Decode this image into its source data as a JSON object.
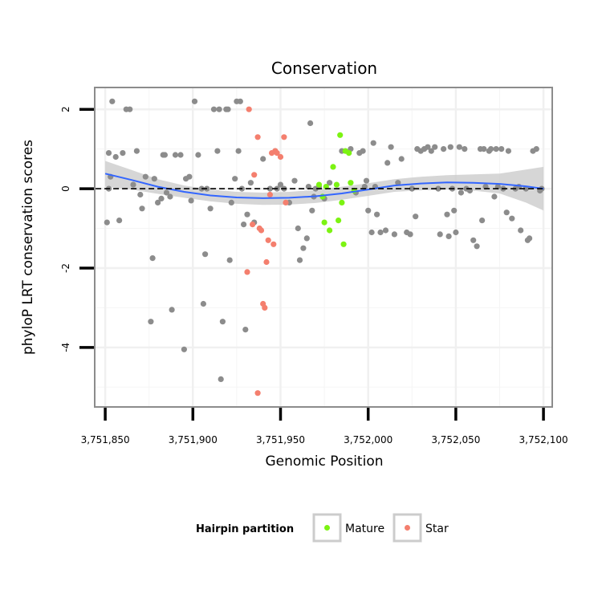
{
  "chart_data": {
    "type": "scatter",
    "title": "Conservation",
    "xlabel": "Genomic Position",
    "ylabel": "phyloP LRT conservation scores",
    "xlim": [
      3751844,
      3752105
    ],
    "ylim": [
      -5.5,
      2.55
    ],
    "x_ticks": [
      {
        "value": 3751850,
        "label": "3,751,850"
      },
      {
        "value": 3751900,
        "label": "3,751,900"
      },
      {
        "value": 3751950,
        "label": "3,751,950"
      },
      {
        "value": 3752000,
        "label": "3,752,000"
      },
      {
        "value": 3752050,
        "label": "3,752,050"
      },
      {
        "value": 3752100,
        "label": "3,752,100"
      }
    ],
    "y_ticks": [
      {
        "value": 2,
        "label": "2"
      },
      {
        "value": 0,
        "label": "0"
      },
      {
        "value": -2,
        "label": "-2"
      },
      {
        "value": -4,
        "label": "-4"
      }
    ],
    "reference_line": {
      "y": 0,
      "style": "dashed"
    },
    "colors": {
      "other": "#8c8c8c",
      "mature": "#7cf312",
      "star": "#f47f6e",
      "smooth": "#3366ff",
      "band": "#cccccc",
      "panel_border": "#8c8c8c"
    },
    "legend": {
      "title": "Hairpin partition",
      "entries": [
        {
          "label": "Mature",
          "color": "#7cf312"
        },
        {
          "label": "Star",
          "color": "#f47f6e"
        }
      ]
    },
    "smooth_line": {
      "x": [
        3751850,
        3751865,
        3751880,
        3751895,
        3751910,
        3751925,
        3751940,
        3751955,
        3751970,
        3751985,
        3752000,
        3752015,
        3752030,
        3752045,
        3752060,
        3752075,
        3752090,
        3752100
      ],
      "y": [
        0.38,
        0.22,
        0.05,
        -0.08,
        -0.17,
        -0.22,
        -0.24,
        -0.23,
        -0.19,
        -0.12,
        -0.02,
        0.08,
        0.13,
        0.16,
        0.15,
        0.12,
        0.06,
        0.0
      ],
      "lower": [
        0.05,
        -0.02,
        -0.13,
        -0.23,
        -0.32,
        -0.38,
        -0.41,
        -0.4,
        -0.36,
        -0.28,
        -0.18,
        -0.08,
        -0.04,
        -0.02,
        -0.05,
        -0.12,
        -0.35,
        -0.55
      ],
      "upper": [
        0.7,
        0.47,
        0.24,
        0.08,
        -0.02,
        -0.08,
        -0.1,
        -0.08,
        -0.03,
        0.05,
        0.14,
        0.24,
        0.3,
        0.34,
        0.36,
        0.38,
        0.48,
        0.55
      ]
    },
    "series": [
      {
        "name": "Other",
        "points": [
          [
            3751852,
            0.9
          ],
          [
            3751853,
            0.3
          ],
          [
            3751854,
            2.2
          ],
          [
            3751856,
            0.8
          ],
          [
            3751858,
            -0.8
          ],
          [
            3751851,
            -0.85
          ],
          [
            3751852,
            0.0
          ],
          [
            3751860,
            0.9
          ],
          [
            3751862,
            2.0
          ],
          [
            3751864,
            2.0
          ],
          [
            3751866,
            0.1
          ],
          [
            3751868,
            0.95
          ],
          [
            3751870,
            -0.15
          ],
          [
            3751871,
            -0.5
          ],
          [
            3751873,
            0.3
          ],
          [
            3751876,
            -3.35
          ],
          [
            3751877,
            -1.75
          ],
          [
            3751878,
            0.25
          ],
          [
            3751880,
            -0.35
          ],
          [
            3751882,
            -0.25
          ],
          [
            3751883,
            0.85
          ],
          [
            3751884,
            0.85
          ],
          [
            3751885,
            -0.1
          ],
          [
            3751887,
            -0.2
          ],
          [
            3751888,
            -3.05
          ],
          [
            3751890,
            0.85
          ],
          [
            3751893,
            0.85
          ],
          [
            3751895,
            -4.05
          ],
          [
            3751896,
            0.25
          ],
          [
            3751898,
            0.3
          ],
          [
            3751899,
            -0.3
          ],
          [
            3751901,
            2.2
          ],
          [
            3751903,
            0.85
          ],
          [
            3751905,
            0.0
          ],
          [
            3751906,
            -2.9
          ],
          [
            3751907,
            -1.65
          ],
          [
            3751908,
            0.0
          ],
          [
            3751910,
            -0.5
          ],
          [
            3751912,
            2.0
          ],
          [
            3751914,
            0.95
          ],
          [
            3751915,
            2.0
          ],
          [
            3751916,
            -4.8
          ],
          [
            3751917,
            -3.35
          ],
          [
            3751919,
            2.0
          ],
          [
            3751920,
            2.0
          ],
          [
            3751921,
            -1.8
          ],
          [
            3751922,
            -0.35
          ],
          [
            3751924,
            0.25
          ],
          [
            3751925,
            2.2
          ],
          [
            3751926,
            0.95
          ],
          [
            3751927,
            2.2
          ],
          [
            3751928,
            0.0
          ],
          [
            3751929,
            -0.9
          ],
          [
            3751930,
            -3.55
          ],
          [
            3751931,
            -0.65
          ],
          [
            3751933,
            0.15
          ],
          [
            3751935,
            -0.85
          ],
          [
            3751940,
            0.75
          ],
          [
            3751944,
            0.0
          ],
          [
            3751947,
            0.95
          ],
          [
            3751948,
            0.0
          ],
          [
            3751950,
            0.1
          ],
          [
            3751952,
            0.0
          ],
          [
            3751955,
            -0.35
          ],
          [
            3751958,
            0.2
          ],
          [
            3751960,
            -1.0
          ],
          [
            3751961,
            -1.8
          ],
          [
            3751963,
            -1.5
          ],
          [
            3751965,
            -1.25
          ],
          [
            3751966,
            0.05
          ],
          [
            3751967,
            1.65
          ],
          [
            3751968,
            -0.55
          ],
          [
            3751969,
            -0.2
          ],
          [
            3751970,
            0.0
          ],
          [
            3751972,
            0.05
          ],
          [
            3751975,
            -0.25
          ],
          [
            3751978,
            0.15
          ],
          [
            3751985,
            0.95
          ],
          [
            3751990,
            1.0
          ],
          [
            3751993,
            -0.1
          ],
          [
            3751995,
            0.9
          ],
          [
            3751997,
            0.95
          ],
          [
            3751998,
            0.05
          ],
          [
            3751999,
            0.2
          ],
          [
            3752000,
            -0.55
          ],
          [
            3752002,
            -1.1
          ],
          [
            3752003,
            1.15
          ],
          [
            3752004,
            0.05
          ],
          [
            3752005,
            -0.65
          ],
          [
            3752007,
            -1.1
          ],
          [
            3752010,
            -1.05
          ],
          [
            3752011,
            0.65
          ],
          [
            3752013,
            1.05
          ],
          [
            3752015,
            -1.15
          ],
          [
            3752017,
            0.15
          ],
          [
            3752019,
            0.75
          ],
          [
            3752022,
            -1.1
          ],
          [
            3752024,
            -1.15
          ],
          [
            3752025,
            0.0
          ],
          [
            3752027,
            -0.7
          ],
          [
            3752028,
            1.0
          ],
          [
            3752030,
            0.95
          ],
          [
            3752032,
            1.0
          ],
          [
            3752034,
            1.05
          ],
          [
            3752036,
            0.95
          ],
          [
            3752038,
            1.05
          ],
          [
            3752040,
            0.0
          ],
          [
            3752041,
            -1.15
          ],
          [
            3752043,
            1.0
          ],
          [
            3752045,
            -0.65
          ],
          [
            3752046,
            -1.2
          ],
          [
            3752047,
            1.05
          ],
          [
            3752048,
            0.0
          ],
          [
            3752049,
            -0.55
          ],
          [
            3752050,
            -1.1
          ],
          [
            3752052,
            1.05
          ],
          [
            3752053,
            -0.1
          ],
          [
            3752055,
            1.0
          ],
          [
            3752056,
            0.0
          ],
          [
            3752058,
            -0.05
          ],
          [
            3752060,
            -1.3
          ],
          [
            3752062,
            -1.45
          ],
          [
            3752064,
            1.0
          ],
          [
            3752065,
            -0.8
          ],
          [
            3752066,
            1.0
          ],
          [
            3752067,
            0.05
          ],
          [
            3752069,
            0.95
          ],
          [
            3752070,
            1.0
          ],
          [
            3752072,
            -0.2
          ],
          [
            3752073,
            1.0
          ],
          [
            3752074,
            0.05
          ],
          [
            3752076,
            1.0
          ],
          [
            3752077,
            0.0
          ],
          [
            3752079,
            -0.6
          ],
          [
            3752080,
            0.95
          ],
          [
            3752082,
            -0.75
          ],
          [
            3752084,
            0.0
          ],
          [
            3752086,
            0.05
          ],
          [
            3752087,
            -1.05
          ],
          [
            3752090,
            0.0
          ],
          [
            3752091,
            -1.3
          ],
          [
            3752092,
            -1.25
          ],
          [
            3752094,
            0.95
          ],
          [
            3752096,
            1.0
          ],
          [
            3752098,
            -0.05
          ],
          [
            3752099,
            0.0
          ]
        ]
      },
      {
        "name": "Star",
        "points": [
          [
            3751932,
            2.0
          ],
          [
            3751934,
            -0.9
          ],
          [
            3751931,
            -2.1
          ],
          [
            3751935,
            0.35
          ],
          [
            3751937,
            1.3
          ],
          [
            3751938,
            -1.0
          ],
          [
            3751939,
            -1.05
          ],
          [
            3751940,
            -2.9
          ],
          [
            3751941,
            -3.0
          ],
          [
            3751942,
            -1.85
          ],
          [
            3751943,
            -1.3
          ],
          [
            3751944,
            -0.15
          ],
          [
            3751945,
            0.9
          ],
          [
            3751946,
            -1.4
          ],
          [
            3751947,
            0.95
          ],
          [
            3751948,
            0.9
          ],
          [
            3751950,
            0.8
          ],
          [
            3751952,
            1.3
          ],
          [
            3751953,
            -0.35
          ],
          [
            3751937,
            -5.15
          ]
        ]
      },
      {
        "name": "Mature",
        "points": [
          [
            3751972,
            0.1
          ],
          [
            3751974,
            -0.2
          ],
          [
            3751975,
            -0.85
          ],
          [
            3751976,
            0.05
          ],
          [
            3751978,
            -1.05
          ],
          [
            3751980,
            0.55
          ],
          [
            3751982,
            0.1
          ],
          [
            3751983,
            -0.8
          ],
          [
            3751984,
            1.35
          ],
          [
            3751985,
            -0.35
          ],
          [
            3751986,
            -1.4
          ],
          [
            3751987,
            0.95
          ],
          [
            3751989,
            0.9
          ],
          [
            3751990,
            0.15
          ],
          [
            3751992,
            -0.05
          ]
        ]
      }
    ]
  }
}
